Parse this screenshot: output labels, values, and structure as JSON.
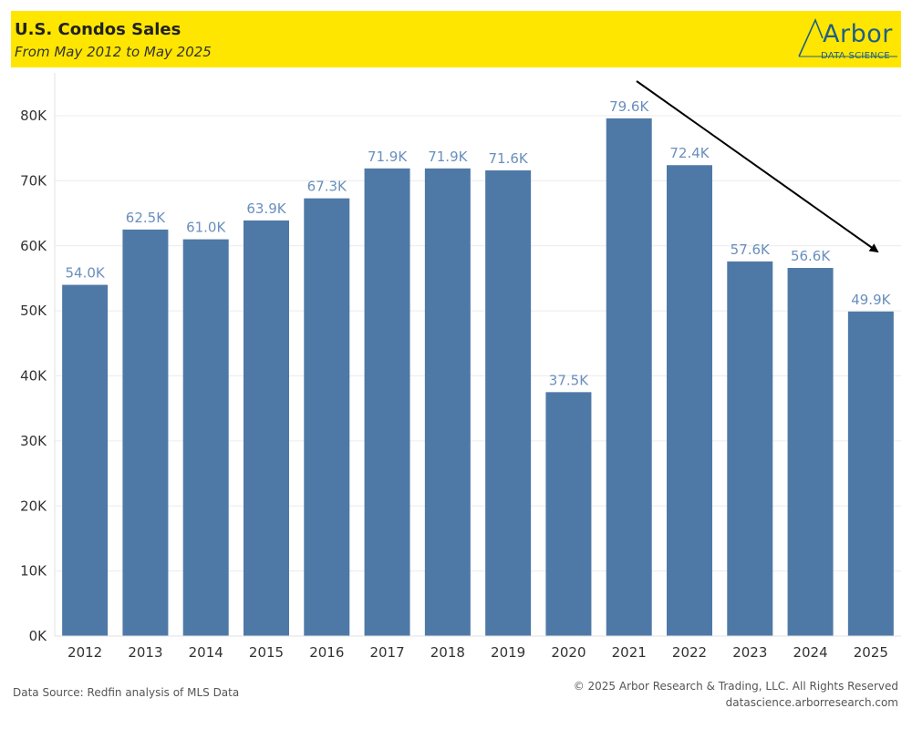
{
  "header": {
    "title": "U.S. Condos Sales",
    "subtitle": "From May 2012 to May 2025",
    "logo_word": "Arbor",
    "logo_tag": "DATA SCIENCE"
  },
  "footer": {
    "source": "Data Source: Redfin analysis of MLS Data",
    "copyright": "© 2025 Arbor Research & Trading, LLC. All Rights Reserved",
    "website": "datascience.arborresearch.com"
  },
  "colors": {
    "header_background": "#ffe600",
    "bar": "#4e79a7",
    "bar_label": "#6a8fbd",
    "logo": "#1f5f86",
    "arrow": "#000000"
  },
  "chart_data": {
    "type": "bar",
    "categories": [
      "2012",
      "2013",
      "2014",
      "2015",
      "2016",
      "2017",
      "2018",
      "2019",
      "2020",
      "2021",
      "2022",
      "2023",
      "2024",
      "2025"
    ],
    "values": [
      54.0,
      62.5,
      61.0,
      63.9,
      67.3,
      71.9,
      71.9,
      71.6,
      37.5,
      79.6,
      72.4,
      57.6,
      56.6,
      49.9
    ],
    "value_labels": [
      "54.0K",
      "62.5K",
      "61.0K",
      "63.9K",
      "67.3K",
      "71.9K",
      "71.9K",
      "71.6K",
      "37.5K",
      "79.6K",
      "72.4K",
      "57.6K",
      "56.6K",
      "49.9K"
    ],
    "unit": "K",
    "ylim": [
      0,
      80
    ],
    "yticks": [
      0,
      10,
      20,
      30,
      40,
      50,
      60,
      70,
      80
    ],
    "ytick_labels": [
      "0K",
      "10K",
      "20K",
      "30K",
      "40K",
      "50K",
      "60K",
      "70K",
      "80K"
    ],
    "grid": true,
    "annotation": {
      "type": "arrow",
      "direction": "downward trend from 2021 toward 2025"
    }
  }
}
